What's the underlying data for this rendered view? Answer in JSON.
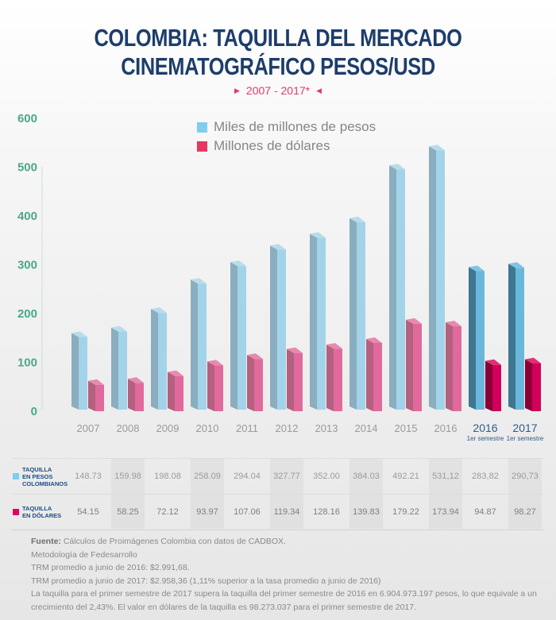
{
  "header": {
    "title_line1": "COLOMBIA: TAQUILLA DEL MERCADO",
    "title_line2": "CINEMATOGRÁFICO PESOS/USD",
    "subtitle": "2007 - 2017*"
  },
  "legend": [
    {
      "label": "Miles de millones de pesos",
      "color": "#7fcdf0"
    },
    {
      "label": "Millones de dólares",
      "color": "#e8385f"
    }
  ],
  "chart_data": {
    "type": "bar",
    "title": "COLOMBIA: TAQUILLA DEL MERCADO CINEMATOGRÁFICO PESOS/USD",
    "subtitle": "2007 - 2017*",
    "categories": [
      "2007",
      "2008",
      "2009",
      "2010",
      "2011",
      "2012",
      "2013",
      "2014",
      "2015",
      "2016",
      "2016",
      "2017"
    ],
    "category_sublabels": [
      "",
      "",
      "",
      "",
      "",
      "",
      "",
      "",
      "",
      "",
      "1er semestre",
      "1er semestre"
    ],
    "highlighted_categories": [
      10,
      11
    ],
    "series": [
      {
        "name": "Miles de millones de pesos",
        "values": [
          148.73,
          159.98,
          198.08,
          258.09,
          294.04,
          327.77,
          352.0,
          384.03,
          492.21,
          531.12,
          283.82,
          290.73
        ]
      },
      {
        "name": "Millones de dólares",
        "values": [
          54.15,
          58.25,
          72.12,
          93.97,
          107.06,
          119.34,
          128.16,
          139.83,
          179.22,
          173.94,
          94.87,
          98.27
        ]
      }
    ],
    "yticks": [
      "0",
      "100",
      "200",
      "300",
      "400",
      "500",
      "600"
    ],
    "ylim": [
      0,
      600
    ],
    "xlabel": "",
    "ylabel": "",
    "grid": false,
    "legend_position": "top-center",
    "colors": {
      "pesos_front": "#a3d3e8",
      "pesos_side": "#8aaebf",
      "pesos_top": "#b8dcea",
      "pesos_hl_front": "#69b8dc",
      "pesos_hl_side": "#3f7690",
      "pesos_hl_top": "#7fc4e3",
      "usd_front": "#e06a9c",
      "usd_side": "#b4607f",
      "usd_top": "#e889b0",
      "usd_hl_front": "#d0005a",
      "usd_hl_side": "#8a0035",
      "usd_hl_top": "#e0306f"
    }
  },
  "table": {
    "rows": [
      {
        "label": "TAQUILLA\nEN PESOS\nCOLOMBIANOS",
        "color": "#7fcdf0",
        "values": [
          "148.73",
          "159.98",
          "198.08",
          "258.09",
          "294.04",
          "327.77",
          "352.00",
          "384.03",
          "492.21",
          "531,12",
          "283,82",
          "290,73"
        ]
      },
      {
        "label": "TAQUILLA\nEN DÓLARES",
        "color": "#e0006a",
        "values": [
          "54.15",
          "58.25",
          "72.12",
          "93.97",
          "107.06",
          "119.34",
          "128.16",
          "139.83",
          "179.22",
          "173.94",
          "94.87",
          "98.27"
        ]
      }
    ]
  },
  "notes": {
    "source_label": "Fuente:",
    "source_text": " Cálculos de Proimágenes Colombia con datos de CADBOX.",
    "lines": [
      "Metodología de Fedesarrollo",
      "TRM promedio a junio de 2016: $2.991,68.",
      "TRM promedio a junio de 2017: $2.958,36 (1,11% superior a la tasa promedio a junio de 2016)",
      "La taquilla para el primer semestre de 2017 supera la taquilla del primer semestre de 2016 en 6.904.973.197 pesos, lo que equivale a un crecimiento del 2,43%. El valor en dólares de la taquilla es 98.273.037 para el primer semestre de 2017."
    ]
  }
}
